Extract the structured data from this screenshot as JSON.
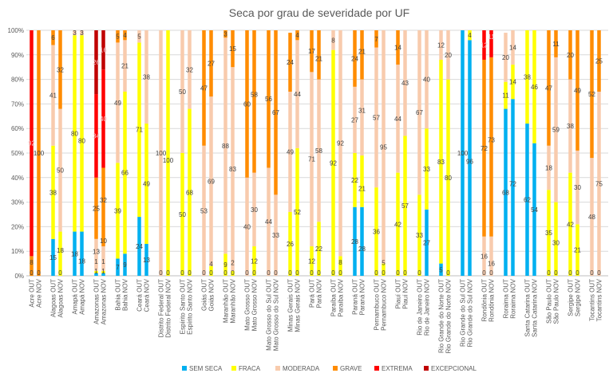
{
  "chart_data": {
    "type": "bar",
    "stacked": "percent",
    "title": "Seca por grau de severidade por UF",
    "ylim": [
      0,
      100
    ],
    "yticks": [
      "0%",
      "10%",
      "20%",
      "30%",
      "40%",
      "50%",
      "60%",
      "70%",
      "80%",
      "90%",
      "100%"
    ],
    "grid": true,
    "legend_position": "bottom",
    "categories": [
      "Acre OUT",
      "Acre NOV",
      "Alagoas OUT",
      "Alagoas NOV",
      "Amapá OUT",
      "Amapá NOV",
      "Amazonas OUT",
      "Amazonas NOV",
      "Bahia OUT",
      "Bahia NOV",
      "Ceará OUT",
      "Ceará NOV",
      "Distrito Federal OUT",
      "Distrito Federal NOV",
      "Espírito Santo OUT",
      "Espírito Santo NOV",
      "Goiás OUT",
      "Goiás NOV",
      "Maranhão OUT",
      "Maranhão NOV",
      "Mato Grosso OUT",
      "Mato Grosso NOV",
      "Mato Grosso do Sul OUT",
      "Mato Grosso do Sul NOV",
      "Minas Gerais OUT",
      "Minas Gerais NOV",
      "Pará OUT",
      "Pará NOV",
      "Paraíba OUT",
      "Paraíba NOV",
      "Paraná OUT",
      "Paraná NOV",
      "Pernambuco OUT",
      "Pernambuco NOV",
      "Piauí OUT",
      "Piauí NOV",
      "Rio de Janeiro OUT",
      "Rio de Janeiro NOV",
      "Rio Grande do Norte OUT",
      "Rio Grande do Norte NOV",
      "Rio Grande do Sul OUT",
      "Rio Grande do Sul NOV",
      "Rondônia OUT",
      "Rondônia NOV",
      "Roraima OUT",
      "Roraima NOV",
      "Santa Catarina OUT",
      "Santa Catarina NOV",
      "São Paulo OUT",
      "São Paulo NOV",
      "Sergipe OUT",
      "Sergipe NOV",
      "Tocantins OUT",
      "Tocantins NOV"
    ],
    "series": [
      {
        "name": "SEM SECA",
        "color": "#00B0F0",
        "values": [
          0,
          0,
          15,
          0,
          18,
          18,
          1,
          1,
          7,
          9,
          24,
          13,
          0,
          0,
          0,
          0,
          0,
          0,
          0,
          0,
          0,
          0,
          0,
          0,
          0,
          0,
          0,
          0,
          0,
          0,
          28,
          28,
          0,
          0,
          0,
          0,
          0,
          27,
          5,
          0,
          100,
          96,
          0,
          0,
          68,
          72,
          62,
          54,
          0,
          0,
          0,
          0,
          0,
          0
        ]
      },
      {
        "name": "FRACA",
        "color": "#FFFF00",
        "values": [
          0,
          0,
          38,
          18,
          80,
          80,
          1,
          1,
          39,
          66,
          71,
          49,
          0,
          100,
          50,
          68,
          0,
          4,
          9,
          2,
          0,
          12,
          0,
          0,
          26,
          52,
          12,
          22,
          92,
          8,
          22,
          21,
          36,
          5,
          42,
          57,
          33,
          33,
          83,
          80,
          0,
          4,
          0,
          0,
          11,
          14,
          38,
          46,
          35,
          30,
          42,
          21,
          0,
          0
        ]
      },
      {
        "name": "MODERADA",
        "color": "#F8CBAD",
        "values": [
          0,
          0,
          41,
          50,
          3,
          3,
          13,
          10,
          49,
          21,
          5,
          38,
          100,
          0,
          50,
          32,
          53,
          69,
          88,
          83,
          40,
          30,
          44,
          33,
          49,
          44,
          71,
          58,
          8,
          92,
          27,
          31,
          57,
          95,
          44,
          43,
          67,
          40,
          12,
          20,
          0,
          0,
          16,
          16,
          20,
          14,
          0,
          0,
          18,
          59,
          38,
          30,
          48,
          75
        ]
      },
      {
        "name": "GRAVE",
        "color": "#FF8C00",
        "values": [
          8,
          100,
          6,
          32,
          0,
          0,
          25,
          32,
          5,
          4,
          0,
          0,
          0,
          0,
          0,
          0,
          47,
          27,
          3,
          15,
          60,
          58,
          56,
          67,
          24,
          4,
          17,
          21,
          0,
          0,
          24,
          21,
          7,
          0,
          14,
          0,
          0,
          0,
          0,
          0,
          0,
          0,
          72,
          73,
          0,
          0,
          0,
          0,
          47,
          11,
          20,
          49,
          52,
          25
        ]
      },
      {
        "name": "EXTREMA",
        "color": "#FF0000",
        "values": [
          92,
          0,
          0,
          0,
          0,
          0,
          34,
          40,
          0,
          0,
          0,
          0,
          0,
          0,
          0,
          0,
          0,
          0,
          0,
          0,
          0,
          0,
          0,
          0,
          0,
          0,
          0,
          0,
          0,
          0,
          0,
          0,
          0,
          0,
          0,
          0,
          0,
          0,
          0,
          0,
          0,
          0,
          12,
          11,
          0,
          0,
          0,
          0,
          0,
          0,
          0,
          0,
          0,
          0
        ]
      },
      {
        "name": "EXCEPCIONAL",
        "color": "#C00000",
        "values": [
          0,
          0,
          0,
          0,
          0,
          0,
          26,
          16,
          0,
          0,
          0,
          0,
          0,
          0,
          0,
          0,
          0,
          0,
          0,
          0,
          0,
          0,
          0,
          0,
          0,
          0,
          0,
          0,
          0,
          0,
          0,
          0,
          0,
          0,
          0,
          0,
          0,
          0,
          0,
          0,
          0,
          0,
          0,
          0,
          0,
          0,
          0,
          0,
          0,
          0,
          0,
          0,
          0,
          0
        ]
      }
    ]
  }
}
